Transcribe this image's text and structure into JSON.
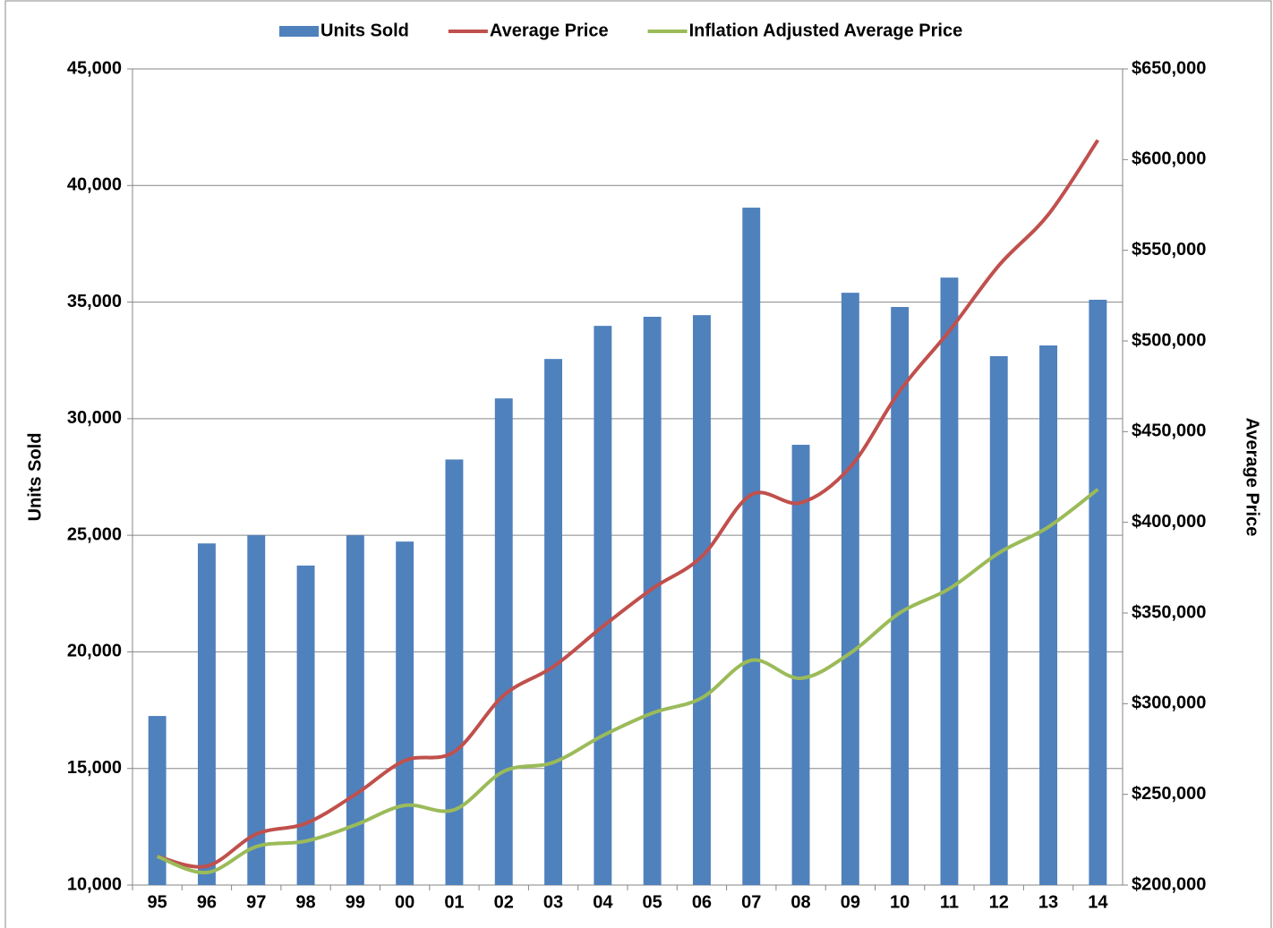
{
  "chart_data": {
    "type": "bar-line",
    "categories": [
      "95",
      "96",
      "97",
      "98",
      "99",
      "00",
      "01",
      "02",
      "03",
      "04",
      "05",
      "06",
      "07",
      "08",
      "09",
      "10",
      "11",
      "12",
      "13",
      "14"
    ],
    "y_label": "Units Sold",
    "y2_label": "Average Price",
    "series": [
      {
        "name": "Units Sold",
        "type": "bar",
        "axis": "y",
        "color": "#4f81bd",
        "values": [
          17250,
          24650,
          25000,
          23700,
          25000,
          24730,
          28250,
          30870,
          32560,
          33980,
          34370,
          34440,
          39050,
          28880,
          35400,
          34790,
          36050,
          32680,
          33140,
          35100
        ]
      },
      {
        "name": "Average Price",
        "type": "line",
        "axis": "y2",
        "color": "#c0504d",
        "values": [
          215800,
          210400,
          228100,
          234000,
          249900,
          268600,
          273500,
          304600,
          320400,
          342600,
          363400,
          381100,
          415200,
          410800,
          430500,
          472500,
          505500,
          541600,
          569700,
          610700
        ]
      },
      {
        "name": "Inflation Adjusted Average Price",
        "type": "line",
        "axis": "y2",
        "color": "#9bbb59",
        "values": [
          215800,
          206900,
          221200,
          224200,
          233100,
          243900,
          241500,
          262700,
          267600,
          282400,
          294800,
          303200,
          323900,
          314000,
          327900,
          350100,
          363400,
          383100,
          397400,
          418200
        ]
      }
    ],
    "ylim": [
      10000,
      45000
    ],
    "yticks": [
      {
        "value": 10000,
        "label": "10,000"
      },
      {
        "value": 15000,
        "label": "15,000"
      },
      {
        "value": 20000,
        "label": "20,000"
      },
      {
        "value": 25000,
        "label": "25,000"
      },
      {
        "value": 30000,
        "label": "30,000"
      },
      {
        "value": 35000,
        "label": "35,000"
      },
      {
        "value": 40000,
        "label": "40,000"
      },
      {
        "value": 45000,
        "label": "45,000"
      }
    ],
    "y2lim": [
      200000,
      650000
    ],
    "y2ticks": [
      {
        "value": 200000,
        "label": "$200,000"
      },
      {
        "value": 250000,
        "label": "$250,000"
      },
      {
        "value": 300000,
        "label": "$300,000"
      },
      {
        "value": 350000,
        "label": "$350,000"
      },
      {
        "value": 400000,
        "label": "$400,000"
      },
      {
        "value": 450000,
        "label": "$450,000"
      },
      {
        "value": 500000,
        "label": "$500,000"
      },
      {
        "value": 550000,
        "label": "$550,000"
      },
      {
        "value": 600000,
        "label": "$600,000"
      },
      {
        "value": 650000,
        "label": "$650,000"
      }
    ],
    "grid": true,
    "legend": "top"
  }
}
